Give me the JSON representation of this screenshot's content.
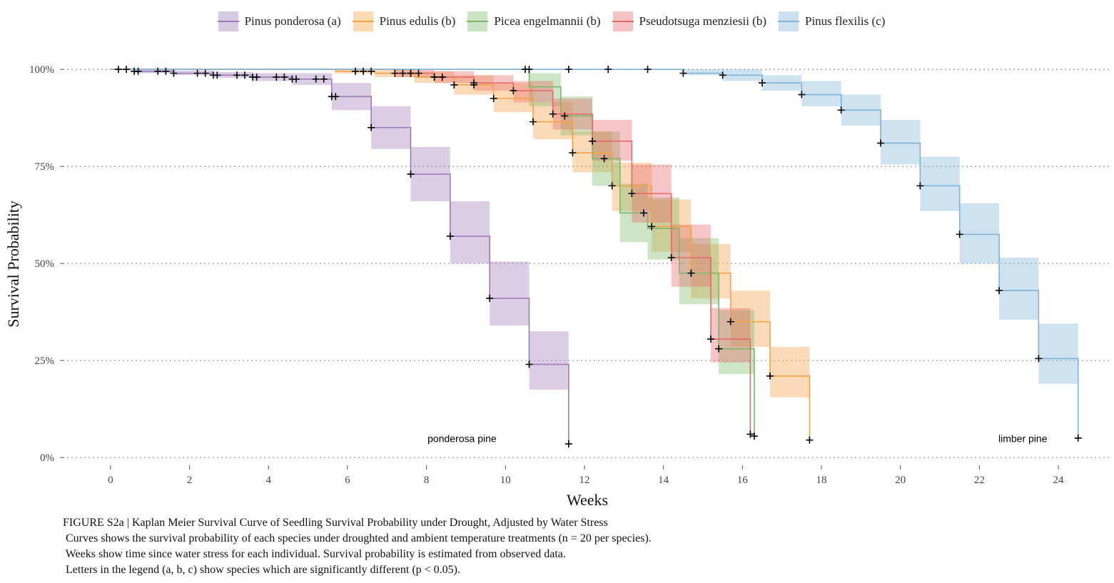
{
  "chart_data": {
    "type": "line",
    "step": true,
    "xlabel": "Weeks",
    "ylabel": "Survival Probability",
    "xlim": [
      -1.1,
      25.3
    ],
    "ylim": [
      -0.02,
      1.05
    ],
    "xticks": [
      0,
      2,
      4,
      6,
      8,
      10,
      12,
      14,
      16,
      18,
      20,
      22,
      24
    ],
    "yticks": [
      0,
      0.25,
      0.5,
      0.75,
      1.0
    ],
    "ytick_labels": [
      "0%",
      "25%",
      "50%",
      "75%",
      "100%"
    ],
    "grid": "horizontal dotted",
    "legend_position": "top",
    "annotations": [
      {
        "text": "ponderosa pine",
        "x": 8.9,
        "y": 0.045
      },
      {
        "text": "limber pine",
        "x": 23.1,
        "y": 0.045
      }
    ],
    "series": [
      {
        "name": "Pinus ponderosa (a)",
        "color": "#9E7BB8",
        "x": [
          0,
          0.6,
          1.6,
          2.6,
          3.6,
          4.6,
          5.6,
          6.6,
          7.6,
          8.6,
          9.6,
          10.6,
          11.6
        ],
        "y": [
          1.0,
          0.995,
          0.99,
          0.985,
          0.98,
          0.975,
          0.93,
          0.85,
          0.73,
          0.57,
          0.41,
          0.24,
          0.035
        ],
        "lower": [
          1.0,
          0.99,
          0.985,
          0.978,
          0.97,
          0.96,
          0.895,
          0.795,
          0.66,
          0.5,
          0.34,
          0.175,
          0.035
        ],
        "upper": [
          1.0,
          1.0,
          0.997,
          0.993,
          0.99,
          0.99,
          0.965,
          0.905,
          0.8,
          0.66,
          0.505,
          0.325,
          0.035
        ],
        "censor": [
          0.2,
          0.4,
          0.6,
          0.7,
          1.2,
          1.4,
          1.6,
          2.2,
          2.4,
          2.6,
          2.7,
          3.2,
          3.4,
          3.6,
          3.7,
          4.2,
          4.4,
          4.6,
          4.7,
          5.2,
          5.4,
          5.6,
          5.7,
          5.6,
          6.6,
          7.6,
          8.6,
          9.6,
          10.6,
          11.6
        ]
      },
      {
        "name": "Pinus edulis (b)",
        "color": "#F5A142",
        "x": [
          0,
          5.7,
          6.7,
          7.7,
          8.7,
          9.7,
          10.7,
          11.7,
          12.7,
          13.7,
          14.7,
          15.7,
          16.7,
          17.7
        ],
        "y": [
          1.0,
          0.995,
          0.99,
          0.98,
          0.96,
          0.925,
          0.865,
          0.785,
          0.7,
          0.595,
          0.475,
          0.35,
          0.21,
          0.045
        ],
        "lower": [
          1.0,
          0.99,
          0.98,
          0.965,
          0.935,
          0.89,
          0.82,
          0.735,
          0.635,
          0.53,
          0.41,
          0.285,
          0.155,
          0.045
        ],
        "upper": [
          1.0,
          1.0,
          1.0,
          0.995,
          0.985,
          0.965,
          0.915,
          0.84,
          0.76,
          0.665,
          0.55,
          0.43,
          0.285,
          0.045
        ],
        "censor": [
          6.2,
          6.4,
          6.6,
          7.2,
          7.6,
          8.2,
          8.4,
          8.7,
          9.2,
          9.7,
          10.7,
          11.7,
          12.7,
          13.7,
          14.7,
          15.7,
          16.7,
          17.7
        ]
      },
      {
        "name": "Picea engelmannii (b)",
        "color": "#7BB867",
        "x": [
          0,
          10.6,
          11.4,
          12.2,
          12.9,
          13.6,
          14.4,
          15.4,
          16.3
        ],
        "y": [
          1.0,
          0.955,
          0.88,
          0.77,
          0.63,
          0.59,
          0.475,
          0.28,
          0.055
        ],
        "lower": [
          1.0,
          0.905,
          0.83,
          0.7,
          0.555,
          0.51,
          0.395,
          0.215,
          0.055
        ],
        "upper": [
          1.0,
          0.99,
          0.93,
          0.84,
          0.705,
          0.67,
          0.565,
          0.38,
          0.055
        ],
        "censor": [
          10.5,
          11.5,
          12.5,
          13.5,
          14.7,
          15.4,
          16.3
        ]
      },
      {
        "name": "Pseudotsuga menziesii (b)",
        "color": "#E8696B",
        "x": [
          0,
          7.2,
          8.2,
          9.2,
          10.2,
          11.2,
          12.2,
          13.2,
          14.2,
          15.2,
          16.2
        ],
        "y": [
          1.0,
          0.99,
          0.98,
          0.965,
          0.945,
          0.885,
          0.815,
          0.68,
          0.515,
          0.305,
          0.06
        ],
        "lower": [
          1.0,
          0.98,
          0.965,
          0.945,
          0.915,
          0.845,
          0.765,
          0.605,
          0.44,
          0.245,
          0.06
        ],
        "upper": [
          1.0,
          1.0,
          0.995,
          0.985,
          0.97,
          0.925,
          0.87,
          0.755,
          0.6,
          0.385,
          0.06
        ],
        "censor": [
          7.4,
          7.6,
          7.8,
          8.2,
          8.4,
          9.2,
          10.2,
          11.2,
          12.2,
          13.2,
          14.2,
          15.2,
          16.2
        ]
      },
      {
        "name": "Pinus flexilis (c)",
        "color": "#7FB2D8",
        "x": [
          0,
          14.5,
          15.5,
          16.5,
          17.5,
          18.5,
          19.5,
          20.5,
          21.5,
          22.5,
          23.5,
          24.5
        ],
        "y": [
          1.0,
          0.99,
          0.985,
          0.965,
          0.935,
          0.895,
          0.81,
          0.7,
          0.575,
          0.43,
          0.255,
          0.05
        ],
        "lower": [
          1.0,
          0.985,
          0.97,
          0.945,
          0.905,
          0.855,
          0.755,
          0.635,
          0.5,
          0.355,
          0.19,
          0.05
        ],
        "upper": [
          1.0,
          1.0,
          1.0,
          0.985,
          0.97,
          0.935,
          0.87,
          0.775,
          0.655,
          0.515,
          0.345,
          0.05
        ],
        "censor": [
          10.6,
          11.6,
          12.6,
          13.6,
          14.5,
          15.5,
          16.5,
          17.5,
          18.5,
          19.5,
          20.5,
          21.5,
          22.5,
          23.5,
          24.5
        ]
      }
    ]
  },
  "caption": {
    "line1": "FIGURE S2a | Kaplan Meier Survival Curve of Seedling Survival Probability under Drought, Adjusted by Water Stress",
    "line2": " Curves shows the survival probability of each species under droughted and ambient temperature treatments (n = 20 per species).",
    "line3": " Weeks show time since water stress for each individual. Survival probability is estimated from observed data.",
    "line4": " Letters in the legend (a, b, c) show species which are significantly different (p < 0.05)."
  }
}
